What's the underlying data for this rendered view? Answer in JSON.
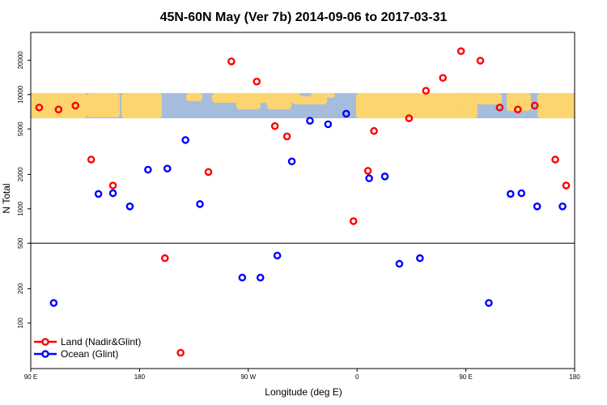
{
  "chart_data": {
    "type": "scatter",
    "title": "45N-60N May (Ver 7b)   2014-09-06 to 2017-03-31",
    "xlabel": "Longitude (deg E)",
    "ylabel": "N Total",
    "yscale": "log",
    "xlim": [
      90,
      540
    ],
    "ylim": [
      40,
      35000
    ],
    "x_ticks": [
      {
        "value": 90,
        "label": "90 E"
      },
      {
        "value": 180,
        "label": "180"
      },
      {
        "value": 270,
        "label": "90 W"
      },
      {
        "value": 360,
        "label": "0"
      },
      {
        "value": 450,
        "label": "90 E"
      },
      {
        "value": 540,
        "label": "180"
      }
    ],
    "y_ticks": [
      {
        "value": 100,
        "label": "100"
      },
      {
        "value": 200,
        "label": "200"
      },
      {
        "value": 500,
        "label": "500"
      },
      {
        "value": 1000,
        "label": "1000"
      },
      {
        "value": 2000,
        "label": "2000"
      },
      {
        "value": 5000,
        "label": "5000"
      },
      {
        "value": 10000,
        "label": "10000"
      },
      {
        "value": 20000,
        "label": "20000"
      }
    ],
    "reference_line_y": 500,
    "map_band": {
      "y_min": 6200,
      "y_max": 10300,
      "note": "world map inset"
    },
    "series": [
      {
        "name": "Land (Nadir&Glint)",
        "color": "#ff0000",
        "x": [
          97,
          113,
          127,
          140,
          158,
          201,
          214,
          237,
          256,
          277,
          292,
          302,
          357,
          369,
          374,
          403,
          417,
          431,
          446,
          462,
          478,
          493,
          507,
          524,
          533
        ],
        "y": [
          7700,
          7400,
          8000,
          2700,
          1600,
          370,
          55,
          2100,
          19500,
          13000,
          5300,
          4300,
          780,
          2150,
          4800,
          6200,
          10800,
          14000,
          24000,
          19800,
          7700,
          7400,
          8000,
          2700,
          1600
        ]
      },
      {
        "name": "Ocean (Glint)",
        "color": "#0000ff",
        "x": [
          109,
          146,
          158,
          172,
          187,
          203,
          218,
          230,
          265,
          280,
          294,
          306,
          321,
          336,
          351,
          370,
          383,
          395,
          412,
          469,
          487,
          496,
          509,
          530
        ],
        "y": [
          150,
          1350,
          1370,
          1050,
          2200,
          2250,
          4000,
          1100,
          250,
          250,
          390,
          2600,
          5900,
          5500,
          6800,
          1850,
          1920,
          330,
          370,
          150,
          1350,
          1370,
          1050,
          1050
        ]
      }
    ]
  }
}
